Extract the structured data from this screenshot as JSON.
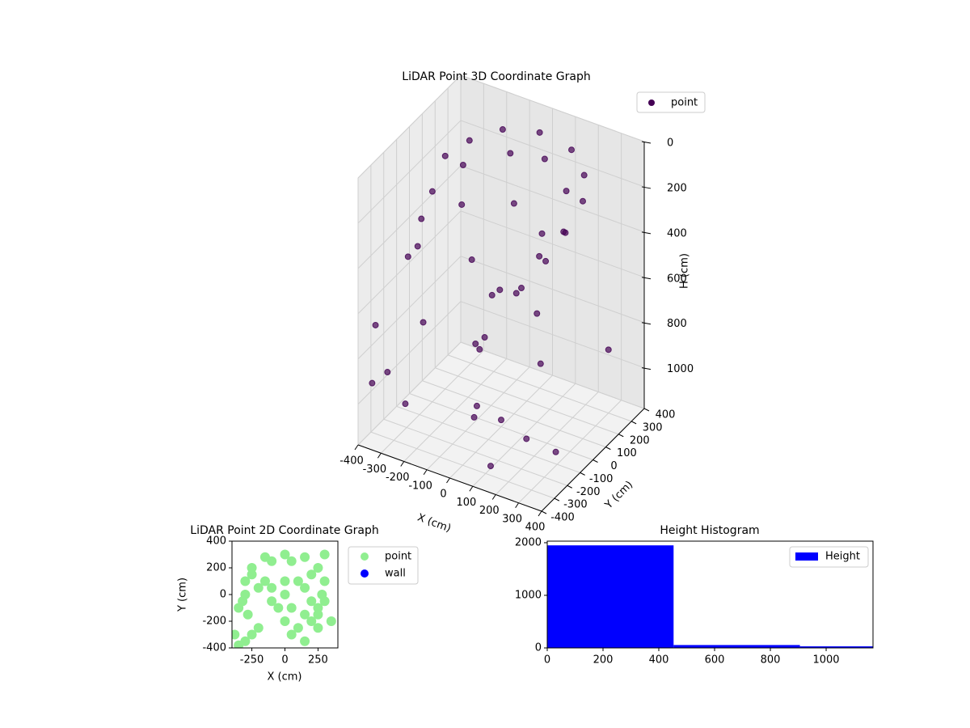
{
  "chart_data": [
    {
      "type": "scatter3d",
      "title": "LiDAR Point 3D Coordinate Graph",
      "xlabel": "X (cm)",
      "ylabel": "Y (cm)",
      "zlabel": "H (cm)",
      "xlim": [
        -400,
        400
      ],
      "xticks": [
        -400,
        -300,
        -200,
        -100,
        0,
        100,
        200,
        300,
        400
      ],
      "ylim": [
        -400,
        400
      ],
      "yticks": [
        -400,
        -300,
        -200,
        -100,
        0,
        100,
        200,
        300,
        400
      ],
      "zlim": [
        0,
        1180
      ],
      "zticks": [
        0,
        200,
        400,
        600,
        800,
        1000
      ],
      "z_inverted": true,
      "grid": true,
      "legend": "upper right",
      "series": [
        {
          "name": "point",
          "color": "#440154",
          "x": [
            -300,
            -250,
            -150,
            0,
            150,
            250,
            300,
            300,
            250,
            -300,
            -250,
            -100,
            50,
            200,
            280,
            250,
            -320,
            -280,
            -200,
            0,
            150,
            200,
            100,
            -350,
            -100,
            50,
            150,
            -380,
            -300,
            -350,
            -200,
            0,
            100,
            200,
            -100,
            50,
            250,
            -50,
            300,
            150,
            -250,
            0,
            350,
            -150
          ],
          "y": [
            100,
            200,
            280,
            300,
            280,
            200,
            100,
            -50,
            -150,
            0,
            150,
            250,
            250,
            150,
            0,
            -100,
            -50,
            -150,
            50,
            100,
            50,
            -200,
            -250,
            -100,
            -50,
            -100,
            -150,
            -300,
            -350,
            -380,
            -250,
            -200,
            100,
            -50,
            50,
            -300,
            -250,
            -100,
            300,
            -350,
            -300,
            0,
            -200,
            100
          ],
          "z": [
            150,
            120,
            80,
            50,
            60,
            90,
            130,
            180,
            250,
            250,
            200,
            150,
            120,
            150,
            220,
            300,
            350,
            400,
            300,
            250,
            300,
            380,
            420,
            500,
            450,
            500,
            450,
            700,
            850,
            900,
            650,
            700,
            700,
            800,
            850,
            950,
            1000,
            1050,
            900,
            1100,
            1000,
            1150,
            1050,
            950
          ]
        }
      ]
    },
    {
      "type": "scatter",
      "title": "LiDAR Point 2D Coordinate Graph",
      "xlabel": "X (cm)",
      "ylabel": "Y (cm)",
      "xlim": [
        -400,
        400
      ],
      "xticks": [
        -250,
        0,
        250
      ],
      "ylim": [
        -400,
        400
      ],
      "yticks": [
        -400,
        -200,
        0,
        200,
        400
      ],
      "legend": "outside right",
      "series": [
        {
          "name": "point",
          "color": "lightgreen",
          "x": [
            -300,
            -250,
            -150,
            0,
            150,
            250,
            300,
            300,
            250,
            -300,
            -250,
            -100,
            50,
            200,
            280,
            250,
            -320,
            -280,
            -200,
            0,
            150,
            200,
            100,
            -350,
            -100,
            50,
            150,
            -380,
            -300,
            -350,
            -200,
            0,
            100,
            200,
            -100,
            50,
            250,
            -50,
            300,
            150,
            -250,
            0,
            350,
            -150
          ],
          "values": [
            100,
            200,
            280,
            300,
            280,
            200,
            100,
            -50,
            -150,
            0,
            150,
            250,
            250,
            150,
            0,
            -100,
            -50,
            -150,
            50,
            100,
            50,
            -200,
            -250,
            -100,
            -50,
            -100,
            -150,
            -300,
            -350,
            -380,
            -250,
            -200,
            100,
            -50,
            50,
            -300,
            -250,
            -100,
            300,
            -350,
            -300,
            0,
            -200,
            100
          ]
        },
        {
          "name": "wall",
          "color": "blue",
          "x": [],
          "values": []
        }
      ]
    },
    {
      "type": "histogram",
      "title": "Height Histogram",
      "xlim": [
        0,
        1168
      ],
      "xticks": [
        0,
        200,
        400,
        600,
        800,
        1000
      ],
      "ylim": [
        0,
        2030
      ],
      "yticks": [
        0,
        1000,
        2000
      ],
      "legend": "upper right",
      "bins": [
        0,
        453,
        906,
        1359
      ],
      "series": [
        {
          "name": "Height",
          "color": "blue",
          "values": [
            1950,
            55,
            30
          ]
        }
      ]
    }
  ]
}
